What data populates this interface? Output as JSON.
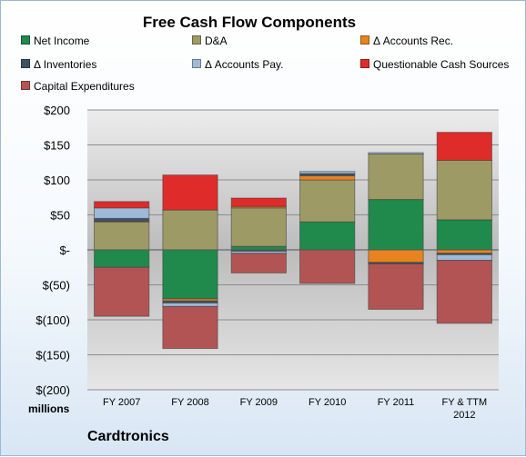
{
  "chart_data": {
    "type": "bar",
    "stacked": true,
    "title": "Free Cash Flow Components",
    "unit_label": "millions",
    "company": "Cardtronics",
    "categories": [
      "FY 2007",
      "FY 2008",
      "FY 2009",
      "FY 2010",
      "FY 2011",
      "FY & TTM|2012"
    ],
    "ylim": [
      -200,
      200
    ],
    "yticks": [
      {
        "value": 200,
        "label": "$200"
      },
      {
        "value": 150,
        "label": "$150"
      },
      {
        "value": 100,
        "label": "$100"
      },
      {
        "value": 50,
        "label": "$50"
      },
      {
        "value": 0,
        "label": "$-"
      },
      {
        "value": -50,
        "label": "$(50)"
      },
      {
        "value": -100,
        "label": "$(100)"
      },
      {
        "value": -150,
        "label": "$(150)"
      },
      {
        "value": -200,
        "label": "$(200)"
      }
    ],
    "legend_position": "top",
    "grid": true,
    "series": [
      {
        "name": "Net Income",
        "color": "#1f8a4c",
        "values": [
          -25,
          -70,
          5,
          40,
          72,
          43
        ]
      },
      {
        "name": "D&A",
        "color": "#9e9a66",
        "values": [
          40,
          57,
          55,
          60,
          65,
          85
        ]
      },
      {
        "name": "Δ Accounts Rec.",
        "color": "#e8831f",
        "values": [
          1,
          -3,
          2,
          6,
          -18,
          -5
        ]
      },
      {
        "name": "Δ Inventories",
        "color": "#3c5266",
        "values": [
          4,
          -3,
          -2,
          3,
          -2,
          -2
        ]
      },
      {
        "name": "Δ Accounts Pay.",
        "color": "#9fbad8",
        "values": [
          15,
          -5,
          -3,
          3,
          2,
          -8
        ]
      },
      {
        "name": "Questionable Cash Sources",
        "color": "#e02b2b",
        "values": [
          9,
          50,
          12,
          0,
          0,
          40
        ]
      },
      {
        "name": "Capital Expenditures",
        "color": "#b35454",
        "values": [
          -70,
          -60,
          -28,
          -48,
          -65,
          -90
        ]
      }
    ]
  }
}
